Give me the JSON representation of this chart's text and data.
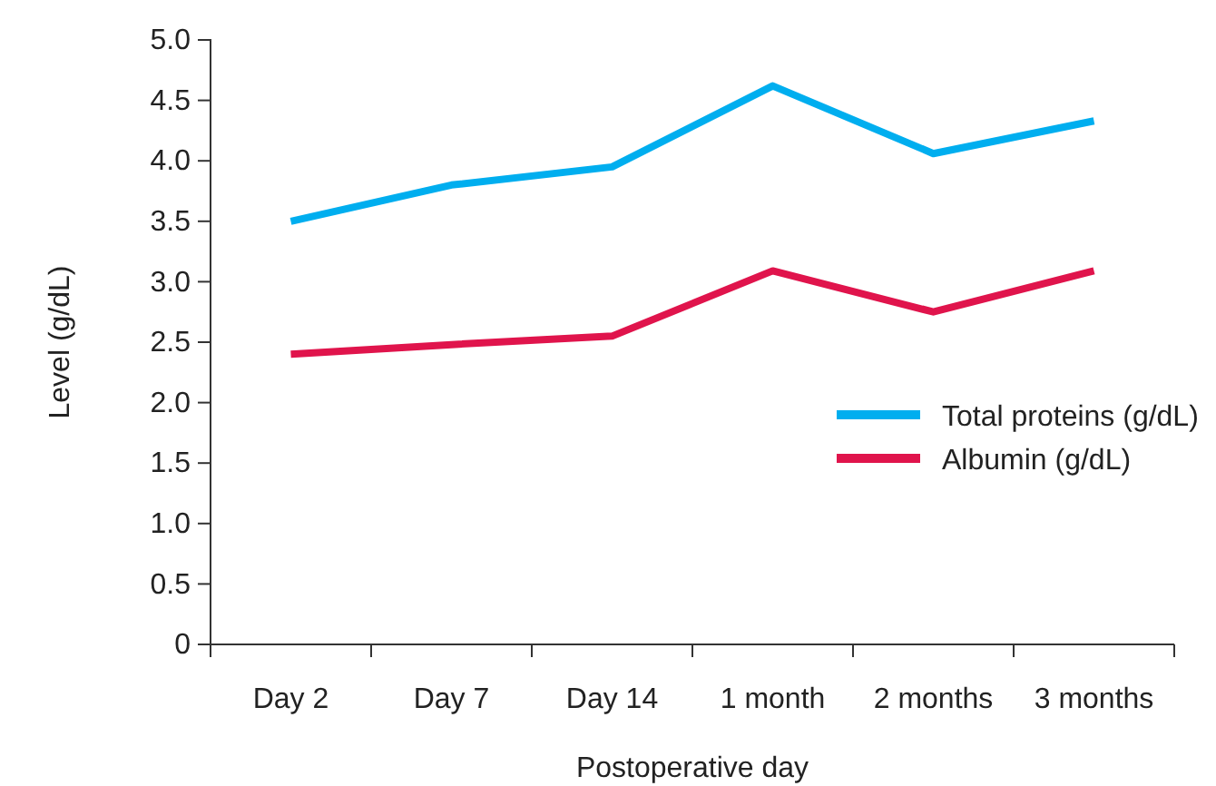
{
  "chart_data": {
    "type": "line",
    "xlabel": "Postoperative day",
    "ylabel": "Level (g/dL)",
    "categories": [
      "Day 2",
      "Day 7",
      "Day 14",
      "1 month",
      "2 months",
      "3 months"
    ],
    "series": [
      {
        "name": "Total proteins (g/dL)",
        "color": "#00aeef",
        "values": [
          3.5,
          3.8,
          3.95,
          4.62,
          4.06,
          4.33
        ]
      },
      {
        "name": "Albumin (g/dL)",
        "color": "#e0144c",
        "values": [
          2.4,
          2.48,
          2.55,
          3.09,
          2.75,
          3.09
        ]
      }
    ],
    "ylim": [
      0,
      5
    ],
    "yticks": [
      0,
      {
        "value": 0.5,
        "label": "0.5"
      },
      {
        "value": 1,
        "label": "1.0"
      },
      {
        "value": 1.5,
        "label": "1.5"
      },
      {
        "value": 2,
        "label": "2.0"
      },
      {
        "value": 2.5,
        "label": "2.5"
      },
      {
        "value": 3,
        "label": "3.0"
      },
      {
        "value": 3.5,
        "label": "3.5"
      },
      {
        "value": 4,
        "label": "4.0"
      },
      {
        "value": 4.5,
        "label": "4.5"
      },
      {
        "value": 5,
        "label": "5.0"
      }
    ],
    "grid": false,
    "legend": "right",
    "marker": "none",
    "line_style": "solid"
  }
}
